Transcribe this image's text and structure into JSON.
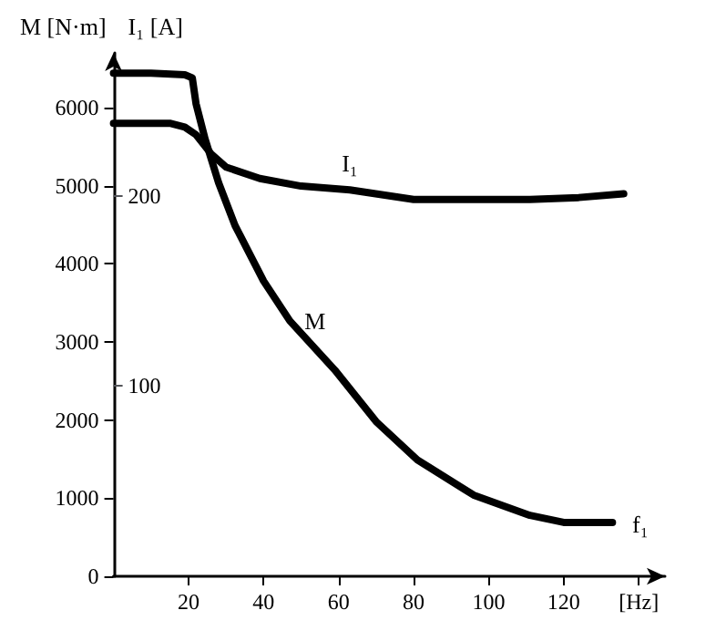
{
  "chart_data": {
    "type": "line",
    "xlabel": "f₁",
    "ylabel": "M [N·m]",
    "y2label": "I₁ [A]",
    "xlim": [
      0,
      147
    ],
    "xticks": [
      20,
      40,
      60,
      80,
      100,
      120,
      {
        "value": 140,
        "label": "[Hz]"
      }
    ],
    "ylim": [
      0,
      6700
    ],
    "yticks": [
      0,
      1000,
      2000,
      3000,
      4000,
      5000,
      6000
    ],
    "y2lim": [
      0,
      275
    ],
    "y2ticks": [
      100,
      200
    ],
    "grid": false,
    "legend": false,
    "line_style": "solid",
    "series": [
      {
        "name": "M",
        "color": "#000000",
        "x": [
          0,
          10,
          19,
          21,
          22,
          24.4,
          28,
          32.4,
          40,
          47,
          59,
          70,
          81,
          96,
          111,
          120,
          133
        ],
        "values": [
          6440,
          6440,
          6420,
          6380,
          6050,
          5600,
          5040,
          4490,
          3780,
          3270,
          2640,
          1980,
          1490,
          1040,
          780,
          690,
          690
        ]
      },
      {
        "name": "I₁",
        "color": "#000000",
        "axis": "y2",
        "x": [
          0,
          15,
          19,
          22,
          26,
          30,
          39,
          50,
          63,
          80,
          96,
          111,
          124,
          136
        ],
        "values": [
          238,
          238,
          236,
          232,
          222,
          215,
          209,
          205,
          203,
          198,
          198,
          198,
          199,
          201
        ]
      }
    ]
  }
}
